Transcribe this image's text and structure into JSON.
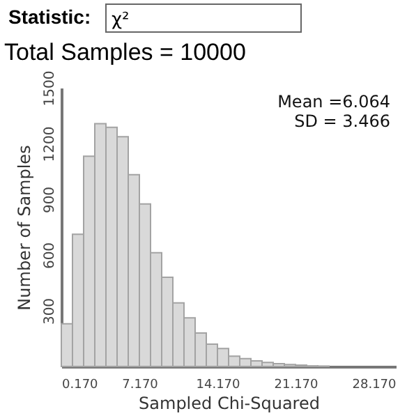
{
  "chart_data": {
    "type": "histogram",
    "title": "Total Samples = 10000",
    "annotations": [
      "Statistic:",
      "χ²",
      "Mean =6.064",
      "SD = 3.466"
    ],
    "xlabel": "Sampled Chi-Squared",
    "ylabel": "Number of Samples",
    "bins": [
      0.17,
      1.17,
      2.17,
      3.17,
      4.17,
      5.17,
      6.17,
      7.17,
      8.17,
      9.17,
      10.17,
      11.17,
      12.17,
      13.17,
      14.17,
      15.17,
      16.17,
      17.17,
      18.17,
      19.17,
      20.17,
      21.17,
      22.17,
      23.17,
      24.17
    ],
    "values": [
      230,
      712,
      1132,
      1307,
      1287,
      1237,
      1032,
      875,
      612,
      480,
      342,
      262,
      180,
      120,
      97,
      55,
      42,
      30,
      22,
      15,
      10,
      7,
      3,
      2
    ],
    "color": "#d9d9d9",
    "xlim": [
      0.17,
      30.17
    ],
    "xticks": [
      {
        "value": 0.17,
        "label": "0.170"
      },
      {
        "value": 7.17,
        "label": "7.170"
      },
      {
        "value": 14.17,
        "label": "14.170"
      },
      {
        "value": 21.17,
        "label": "21.170"
      },
      {
        "value": 28.17,
        "label": "28.170"
      }
    ],
    "ylim": [
      0,
      1500
    ],
    "yticks": [
      300,
      600,
      900,
      1200,
      1500
    ],
    "grid": false
  }
}
